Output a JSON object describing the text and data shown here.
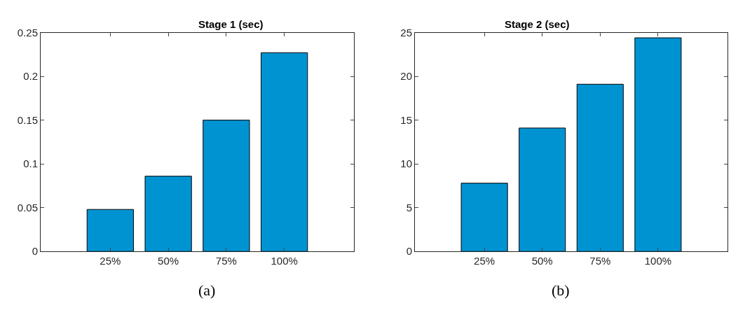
{
  "chart_data": [
    {
      "type": "bar",
      "title": "Stage 1 (sec)",
      "categories": [
        "25%",
        "50%",
        "75%",
        "100%"
      ],
      "values": [
        0.048,
        0.086,
        0.15,
        0.227
      ],
      "color": "#0093d2",
      "ylim": [
        0,
        0.25
      ],
      "yticks": [
        0,
        0.05,
        0.1,
        0.15,
        0.2,
        0.25
      ],
      "annotations": [
        "(a)"
      ]
    },
    {
      "type": "bar",
      "title": "Stage 2 (sec)",
      "categories": [
        "25%",
        "50%",
        "75%",
        "100%"
      ],
      "values": [
        7.8,
        14.1,
        19.1,
        24.4
      ],
      "color": "#0093d2",
      "ylim": [
        0,
        25
      ],
      "yticks": [
        0,
        5,
        10,
        15,
        20,
        25
      ],
      "annotations": [
        "(b)"
      ]
    }
  ]
}
